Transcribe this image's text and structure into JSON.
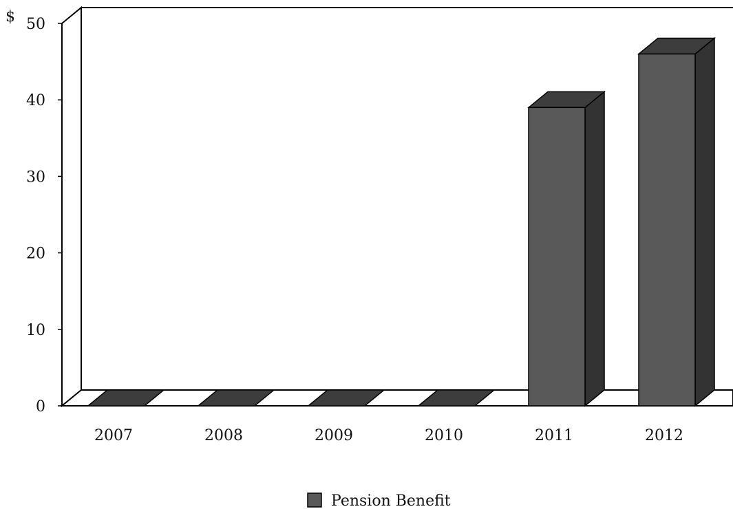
{
  "chart_data": {
    "type": "bar",
    "style": "3d",
    "title": "",
    "xlabel": "",
    "ylabel": "",
    "y_unit_label": "$",
    "categories": [
      "2007",
      "2008",
      "2009",
      "2010",
      "2011",
      "2012"
    ],
    "series": [
      {
        "name": "Pension Benefit",
        "values": [
          0,
          0,
          0,
          0,
          39,
          46
        ]
      }
    ],
    "ylim": [
      0,
      50
    ],
    "yticks": [
      0,
      10,
      20,
      30,
      40,
      50
    ],
    "grid": false,
    "legend": "bottom-center",
    "colors": {
      "bar_front": "#595959",
      "bar_side": "#333333",
      "bar_top": "#3d3d3d",
      "outline": "#000000",
      "wall": "#ffffff"
    }
  }
}
